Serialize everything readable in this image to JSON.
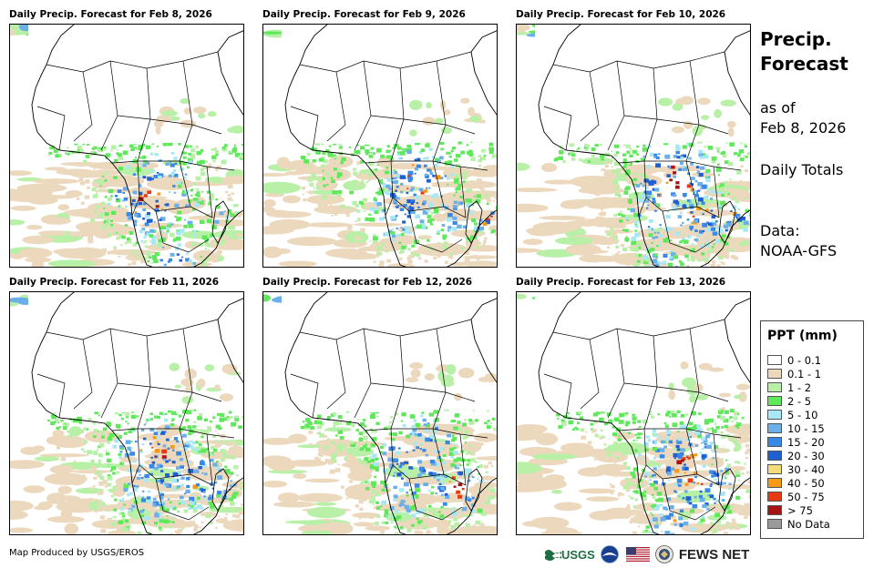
{
  "panels": [
    {
      "title": "Daily Precip. Forecast for Feb 8, 2026"
    },
    {
      "title": "Daily Precip. Forecast for Feb 9, 2026"
    },
    {
      "title": "Daily Precip. Forecast for Feb 10, 2026"
    },
    {
      "title": "Daily Precip. Forecast for Feb 11, 2026"
    },
    {
      "title": "Daily Precip. Forecast for Feb 12, 2026"
    },
    {
      "title": "Daily Precip. Forecast for Feb 13, 2026"
    }
  ],
  "side": {
    "title_line1": "Precip.",
    "title_line2": "Forecast",
    "asof_line1": "as of",
    "asof_line2": "Feb 8, 2026",
    "totals": "Daily Totals",
    "data_label": "Data:",
    "data_source": "NOAA-GFS"
  },
  "legend": {
    "title": "PPT (mm)",
    "items": [
      {
        "label": "0 - 0.1",
        "color": "#ffffff"
      },
      {
        "label": "0.1 - 1",
        "color": "#ecd9bd"
      },
      {
        "label": "1 - 2",
        "color": "#b8f0a8"
      },
      {
        "label": "2 - 5",
        "color": "#5ee85a"
      },
      {
        "label": "5 - 10",
        "color": "#a8e8f5"
      },
      {
        "label": "10 - 15",
        "color": "#6aaeea"
      },
      {
        "label": "15 - 20",
        "color": "#3a88e6"
      },
      {
        "label": "20 - 30",
        "color": "#1f5fd1"
      },
      {
        "label": "30 - 40",
        "color": "#f5dc7a"
      },
      {
        "label": "40 - 50",
        "color": "#f49a18"
      },
      {
        "label": "50 - 75",
        "color": "#e63a12"
      },
      {
        "label": "> 75",
        "color": "#a81414"
      },
      {
        "label": "No Data",
        "color": "#9a9a9a"
      }
    ]
  },
  "footer": {
    "credit": "Map Produced by USGS/EROS",
    "usgs": "USGS",
    "fews": "FEWS NET"
  }
}
